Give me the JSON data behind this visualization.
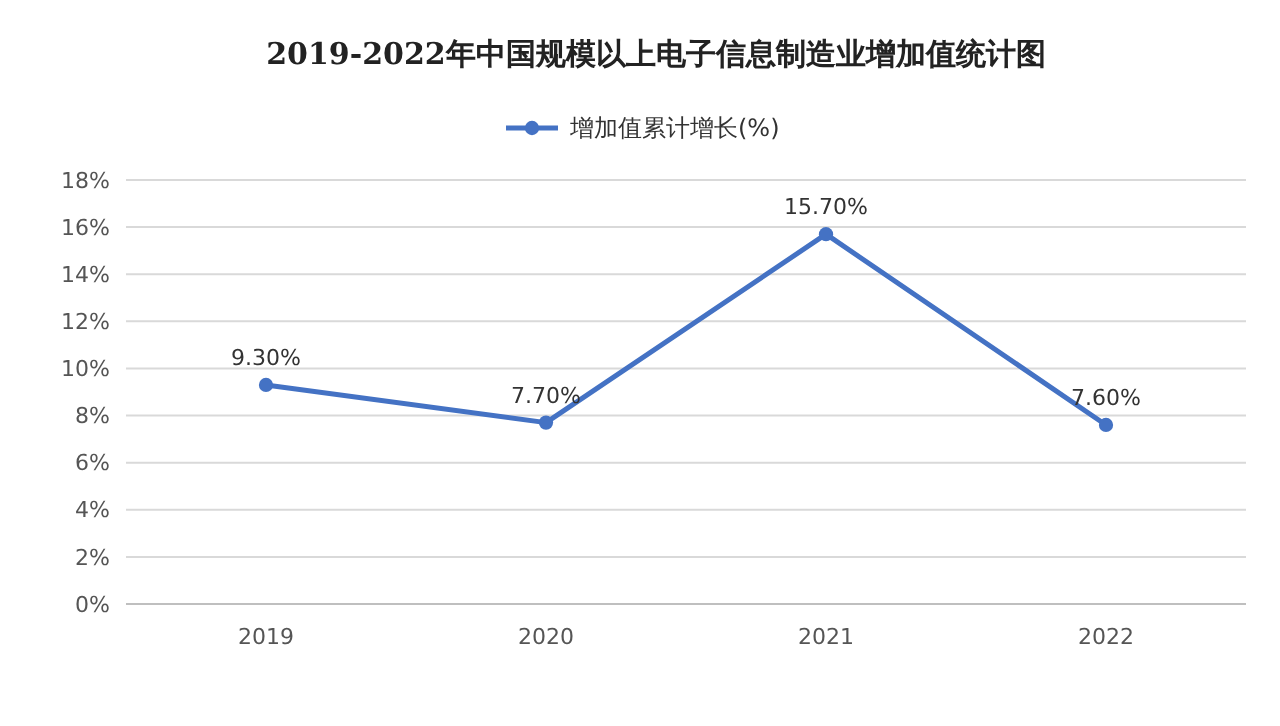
{
  "chart_data": {
    "type": "line",
    "title": "2019-2022年中国规模以上电子信息制造业增加值统计图",
    "categories": [
      "2019",
      "2020",
      "2021",
      "2022"
    ],
    "series": [
      {
        "name": "增加值累计增长(%)",
        "color": "#4472c4",
        "values": [
          9.3,
          7.7,
          15.7,
          7.6
        ],
        "value_labels": [
          "9.30%",
          "7.70%",
          "15.70%",
          "7.60%"
        ]
      }
    ],
    "ylim": [
      0,
      18
    ],
    "yticks": [
      {
        "value": 0,
        "label": "0%"
      },
      {
        "value": 2,
        "label": "2%"
      },
      {
        "value": 4,
        "label": "4%"
      },
      {
        "value": 6,
        "label": "6%"
      },
      {
        "value": 8,
        "label": "8%"
      },
      {
        "value": 10,
        "label": "10%"
      },
      {
        "value": 12,
        "label": "12%"
      },
      {
        "value": 14,
        "label": "14%"
      },
      {
        "value": 16,
        "label": "16%"
      },
      {
        "value": 18,
        "label": "18%"
      }
    ],
    "grid": "y",
    "legend": "top",
    "marker": "circle",
    "line_style": "solid"
  }
}
